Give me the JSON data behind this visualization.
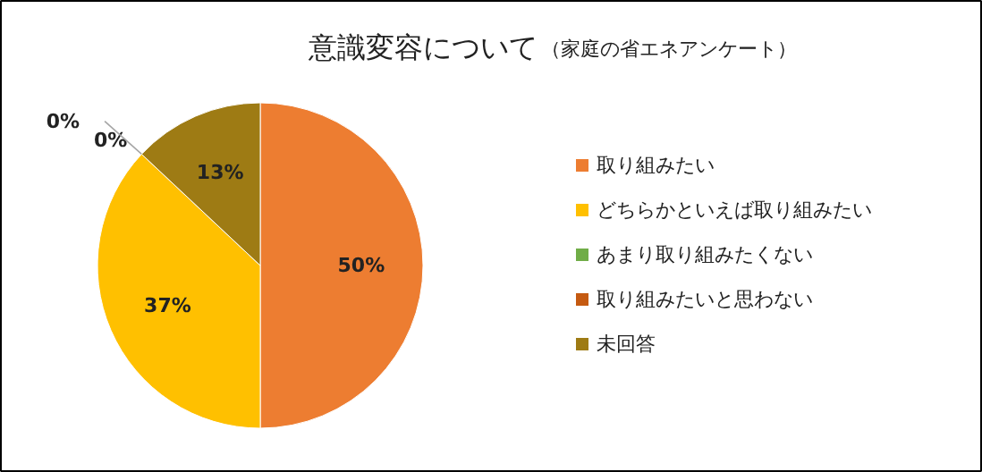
{
  "chart_data": {
    "type": "pie",
    "title": "意識変容について",
    "subtitle": "（家庭の省エネアンケート）",
    "categories": [
      "取り組みたい",
      "どちらかといえば取り組みたい",
      "あまり取り組みたくない",
      "取り組みたいと思わない",
      "未回答"
    ],
    "values": [
      50,
      37,
      0,
      0,
      13
    ],
    "colors": [
      "#ed7d31",
      "#ffc000",
      "#70ad47",
      "#c55a11",
      "#9e7b14"
    ],
    "value_labels": [
      "50%",
      "37%",
      "0%",
      "0%",
      "13%"
    ],
    "legend": "right"
  }
}
